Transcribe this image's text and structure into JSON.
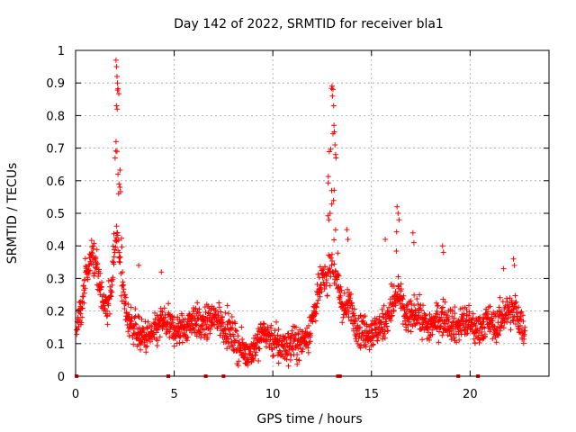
{
  "chart_data": {
    "type": "scatter",
    "title": "Day 142 of 2022, SRMTID for receiver bla1",
    "xlabel": "GPS time / hours",
    "ylabel": "SRMTID / TECUs",
    "xlim": [
      0,
      24
    ],
    "ylim": [
      0,
      1
    ],
    "xticks": [
      0,
      5,
      10,
      15,
      20
    ],
    "xtick_labels": [
      "0",
      "5",
      "10",
      "15",
      "20"
    ],
    "yticks": [
      0,
      0.1,
      0.2,
      0.3,
      0.4,
      0.5,
      0.6,
      0.7,
      0.8,
      0.9,
      1
    ],
    "ytick_labels": [
      "0",
      "0.1",
      "0.2",
      "0.3",
      "0.4",
      "0.5",
      "0.6",
      "0.7",
      "0.8",
      "0.9",
      "1"
    ],
    "grid": true,
    "marker": "plus",
    "color": "#ff0000",
    "profile": [
      [
        0.05,
        0.15
      ],
      [
        0.3,
        0.2
      ],
      [
        0.5,
        0.3
      ],
      [
        0.8,
        0.37
      ],
      [
        1.0,
        0.35
      ],
      [
        1.3,
        0.25
      ],
      [
        1.6,
        0.2
      ],
      [
        1.9,
        0.3
      ],
      [
        2.1,
        0.45
      ],
      [
        2.3,
        0.3
      ],
      [
        2.6,
        0.18
      ],
      [
        3.0,
        0.15
      ],
      [
        3.3,
        0.12
      ],
      [
        3.6,
        0.12
      ],
      [
        4.0,
        0.13
      ],
      [
        4.4,
        0.17
      ],
      [
        4.8,
        0.15
      ],
      [
        5.2,
        0.14
      ],
      [
        5.6,
        0.15
      ],
      [
        6.0,
        0.18
      ],
      [
        6.4,
        0.15
      ],
      [
        6.8,
        0.17
      ],
      [
        7.2,
        0.18
      ],
      [
        7.6,
        0.15
      ],
      [
        8.0,
        0.12
      ],
      [
        8.4,
        0.08
      ],
      [
        8.8,
        0.07
      ],
      [
        9.2,
        0.1
      ],
      [
        9.5,
        0.14
      ],
      [
        9.8,
        0.12
      ],
      [
        10.2,
        0.1
      ],
      [
        10.6,
        0.09
      ],
      [
        11.0,
        0.1
      ],
      [
        11.4,
        0.1
      ],
      [
        11.8,
        0.13
      ],
      [
        12.2,
        0.22
      ],
      [
        12.5,
        0.3
      ],
      [
        12.8,
        0.3
      ],
      [
        13.0,
        0.35
      ],
      [
        13.3,
        0.28
      ],
      [
        13.6,
        0.2
      ],
      [
        13.9,
        0.22
      ],
      [
        14.3,
        0.15
      ],
      [
        14.8,
        0.13
      ],
      [
        15.3,
        0.14
      ],
      [
        15.8,
        0.18
      ],
      [
        16.3,
        0.25
      ],
      [
        16.8,
        0.17
      ],
      [
        17.3,
        0.2
      ],
      [
        17.8,
        0.15
      ],
      [
        18.3,
        0.17
      ],
      [
        18.8,
        0.18
      ],
      [
        19.3,
        0.15
      ],
      [
        19.8,
        0.17
      ],
      [
        20.3,
        0.14
      ],
      [
        20.8,
        0.17
      ],
      [
        21.3,
        0.15
      ],
      [
        21.8,
        0.2
      ],
      [
        22.3,
        0.2
      ],
      [
        22.8,
        0.13
      ]
    ],
    "noise": 0.05,
    "bursts": [
      {
        "x_min": 1.85,
        "x_max": 2.45,
        "peak": 0.96
      },
      {
        "x_min": 12.6,
        "x_max": 13.35,
        "peak": 0.89
      },
      {
        "x_min": 15.9,
        "x_max": 16.6,
        "peak": 0.52
      },
      {
        "x_min": 0.4,
        "x_max": 1.1,
        "peak": 0.45
      }
    ],
    "highlights": [
      {
        "x": 2.05,
        "y": 0.97
      },
      {
        "x": 2.08,
        "y": 0.95
      },
      {
        "x": 2.1,
        "y": 0.92
      },
      {
        "x": 2.12,
        "y": 0.9
      },
      {
        "x": 2.07,
        "y": 0.83
      },
      {
        "x": 2.11,
        "y": 0.82
      },
      {
        "x": 2.05,
        "y": 0.72
      },
      {
        "x": 2.1,
        "y": 0.69
      },
      {
        "x": 2.15,
        "y": 0.62
      },
      {
        "x": 2.2,
        "y": 0.59
      },
      {
        "x": 2.18,
        "y": 0.56
      },
      {
        "x": 2.25,
        "y": 0.58
      },
      {
        "x": 13.0,
        "y": 0.89
      },
      {
        "x": 13.05,
        "y": 0.88
      },
      {
        "x": 13.02,
        "y": 0.86
      },
      {
        "x": 13.08,
        "y": 0.83
      },
      {
        "x": 13.1,
        "y": 0.77
      },
      {
        "x": 13.12,
        "y": 0.75
      },
      {
        "x": 13.15,
        "y": 0.71
      },
      {
        "x": 13.18,
        "y": 0.68
      },
      {
        "x": 13.2,
        "y": 0.67
      },
      {
        "x": 12.98,
        "y": 0.57
      },
      {
        "x": 12.9,
        "y": 0.5
      },
      {
        "x": 12.85,
        "y": 0.48
      },
      {
        "x": 16.3,
        "y": 0.52
      },
      {
        "x": 16.35,
        "y": 0.5
      },
      {
        "x": 16.4,
        "y": 0.48
      },
      {
        "x": 18.6,
        "y": 0.4
      },
      {
        "x": 18.65,
        "y": 0.38
      },
      {
        "x": 17.1,
        "y": 0.44
      },
      {
        "x": 17.15,
        "y": 0.41
      },
      {
        "x": 15.7,
        "y": 0.42
      },
      {
        "x": 22.2,
        "y": 0.36
      },
      {
        "x": 22.25,
        "y": 0.34
      },
      {
        "x": 21.7,
        "y": 0.33
      },
      {
        "x": 4.35,
        "y": 0.32
      },
      {
        "x": 3.2,
        "y": 0.34
      },
      {
        "x": 13.75,
        "y": 0.45
      },
      {
        "x": 13.8,
        "y": 0.42
      },
      {
        "x": 8.6,
        "y": 0.04
      },
      {
        "x": 10.3,
        "y": 0.04
      }
    ],
    "baseline_gaps": [
      0.05,
      4.7,
      6.6,
      7.5,
      13.3,
      13.4,
      19.4,
      20.4
    ]
  }
}
